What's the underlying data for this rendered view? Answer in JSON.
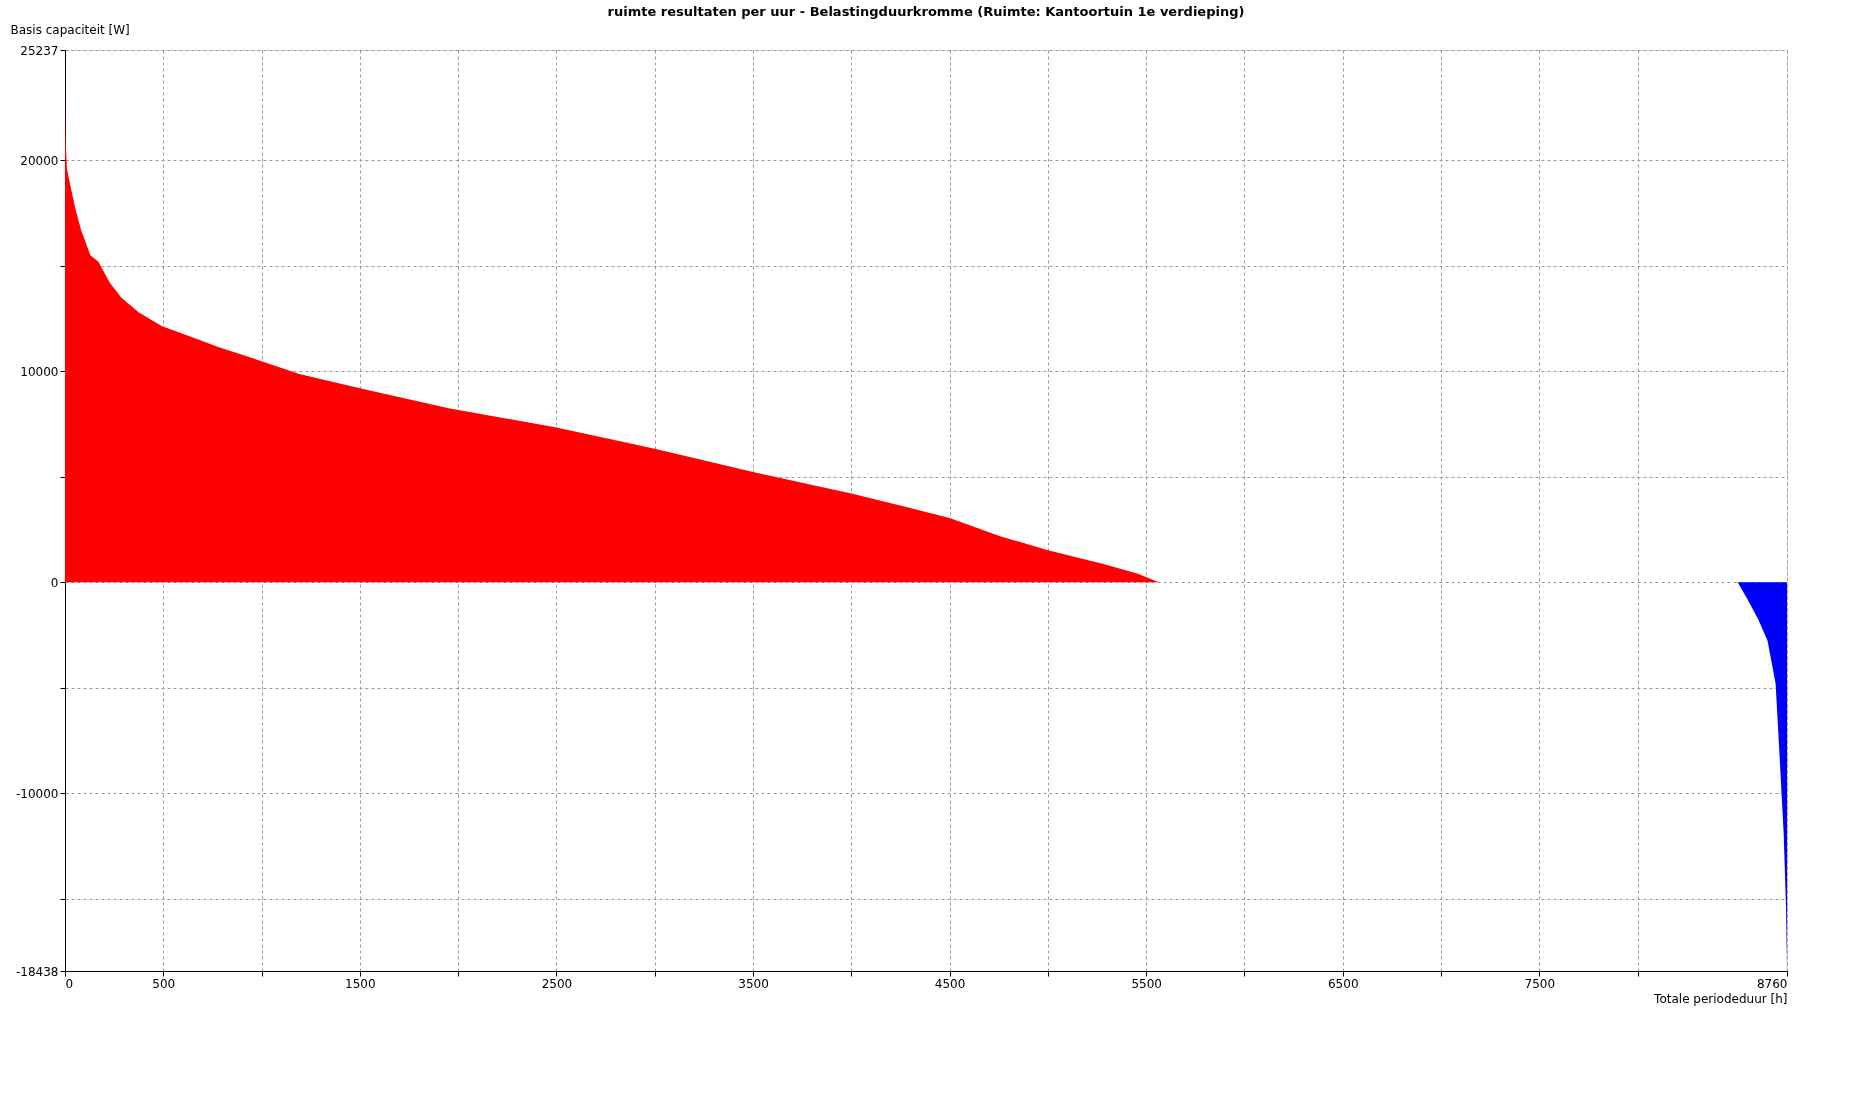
{
  "chart_data": {
    "type": "area",
    "title": "ruimte resultaten per uur - Belastingduurkromme (Ruimte: Kantoortuin 1e verdieping)",
    "xlabel": "Totale periodeduur [h]",
    "ylabel": "Basis capaciteit [W]",
    "series": [
      {
        "color": "#ff0000",
        "x": [
          0,
          1,
          3,
          10,
          23,
          53,
          82,
          129,
          170,
          228,
          286,
          374,
          491,
          637,
          783,
          1000,
          1192,
          1500,
          1952,
          2500,
          3000,
          3500,
          4000,
          4290,
          4500,
          4757,
          5000,
          5283,
          5458,
          5564,
          8509
        ],
        "values": [
          25237,
          22000,
          21000,
          19600,
          19000,
          17700,
          16700,
          15500,
          15200,
          14200,
          13500,
          12800,
          12150,
          11650,
          11140,
          10480,
          9870,
          9200,
          8250,
          7340,
          6330,
          5220,
          4200,
          3540,
          3040,
          2180,
          1520,
          860,
          400,
          0,
          0
        ]
      },
      {
        "color": "#0000ff",
        "x": [
          8509,
          8556,
          8614,
          8661,
          8702,
          8720,
          8743,
          8755,
          8760
        ],
        "values": [
          0,
          -760,
          -1770,
          -2780,
          -4800,
          -7850,
          -11900,
          -15400,
          -18438
        ]
      }
    ],
    "xlim": [
      0,
      8760
    ],
    "ylim": [
      -18438,
      25237
    ],
    "xticks": [
      0,
      500,
      {
        "value": 1000,
        "label": null
      },
      1500,
      {
        "value": 2000,
        "label": null
      },
      2500,
      {
        "value": 3000,
        "label": null
      },
      3500,
      {
        "value": 4000,
        "label": null
      },
      4500,
      {
        "value": 5000,
        "label": null
      },
      5500,
      {
        "value": 6000,
        "label": null
      },
      6500,
      {
        "value": 7000,
        "label": null
      },
      7500,
      {
        "value": 8000,
        "label": null
      },
      8760
    ],
    "yticks": [
      -18438,
      {
        "value": -15000,
        "label": null
      },
      -10000,
      {
        "value": -5000,
        "label": null
      },
      0,
      {
        "value": 5000,
        "label": null
      },
      10000,
      {
        "value": 15000,
        "label": null
      },
      20000,
      25237
    ],
    "grid": true
  }
}
